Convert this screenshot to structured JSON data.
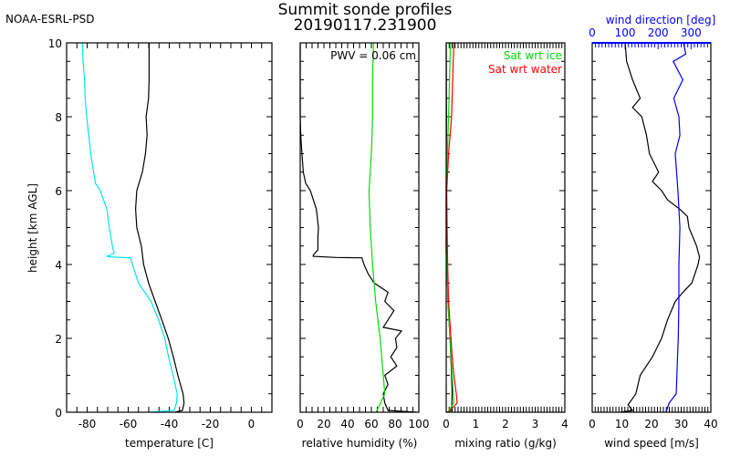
{
  "header": {
    "org": "NOAA-ESRL-PSD",
    "title": "Summit sonde profiles",
    "subtitle": "20190117.231900"
  },
  "chart_data": [
    {
      "type": "line",
      "id": "temperature",
      "xlabel": "temperature [C]",
      "ylabel": "height [km AGL]",
      "xlim": [
        -90,
        10
      ],
      "ylim": [
        0,
        10
      ],
      "xticks": [
        -80,
        -60,
        -40,
        -20,
        0
      ],
      "yticks": [
        0,
        2,
        4,
        6,
        8,
        10
      ],
      "series": [
        {
          "name": "temperature",
          "color": "#000000",
          "points": [
            [
              -37.2,
              0
            ],
            [
              -33.6,
              0.05
            ],
            [
              -32.8,
              0.25
            ],
            [
              -33.3,
              0.5
            ],
            [
              -35.8,
              1
            ],
            [
              -38.0,
              1.5
            ],
            [
              -40.5,
              2
            ],
            [
              -43.6,
              2.5
            ],
            [
              -46.9,
              3
            ],
            [
              -50.1,
              3.5
            ],
            [
              -52.5,
              4
            ],
            [
              -53.6,
              4.5
            ],
            [
              -55.8,
              5
            ],
            [
              -56.4,
              5.5
            ],
            [
              -55.8,
              6
            ],
            [
              -53.1,
              6.5
            ],
            [
              -51.6,
              7
            ],
            [
              -50.8,
              7.5
            ],
            [
              -51.3,
              8
            ],
            [
              -50.1,
              8.5
            ],
            [
              -49.8,
              9
            ],
            [
              -49.8,
              9.5
            ],
            [
              -49.8,
              10
            ]
          ]
        },
        {
          "name": "dewpoint",
          "color": "#00e5ee",
          "points": [
            [
              -49.1,
              0
            ],
            [
              -37.6,
              0.05
            ],
            [
              -36.5,
              0.25
            ],
            [
              -36.2,
              0.5
            ],
            [
              -38.1,
              1
            ],
            [
              -40.4,
              1.5
            ],
            [
              -42.2,
              2
            ],
            [
              -45.2,
              2.5
            ],
            [
              -48.9,
              3
            ],
            [
              -55.0,
              3.5
            ],
            [
              -58.0,
              4
            ],
            [
              -58.8,
              4.18
            ],
            [
              -67.4,
              4.2
            ],
            [
              -70.6,
              4.22
            ],
            [
              -66.9,
              4.3
            ],
            [
              -67.7,
              4.5
            ],
            [
              -69.2,
              5
            ],
            [
              -70.4,
              5.5
            ],
            [
              -73.6,
              6
            ],
            [
              -76.0,
              6.2
            ],
            [
              -76.8,
              6.5
            ],
            [
              -78.3,
              7
            ],
            [
              -79.2,
              7.5
            ],
            [
              -80.2,
              8
            ],
            [
              -81.0,
              8.5
            ],
            [
              -81.3,
              9
            ],
            [
              -82.0,
              9.5
            ],
            [
              -82.3,
              10
            ]
          ]
        }
      ]
    },
    {
      "type": "line",
      "id": "humidity",
      "xlabel": "relative humidity (%)",
      "xlim": [
        0,
        100
      ],
      "ylim": [
        0,
        10
      ],
      "xticks": [
        0,
        20,
        40,
        60,
        80,
        100
      ],
      "annotation": "PWV = 0.06 cm",
      "series": [
        {
          "name": "relative humidity",
          "color": "#000000",
          "points": [
            [
              98,
              0
            ],
            [
              74,
              0.05
            ],
            [
              71.3,
              0.25
            ],
            [
              70,
              0.5
            ],
            [
              74,
              0.75
            ],
            [
              71.3,
              1
            ],
            [
              81.5,
              1.25
            ],
            [
              76.4,
              1.5
            ],
            [
              81.5,
              1.75
            ],
            [
              80.3,
              2
            ],
            [
              85.4,
              2.2
            ],
            [
              70,
              2.3
            ],
            [
              74,
              2.5
            ],
            [
              79,
              2.75
            ],
            [
              71.3,
              3
            ],
            [
              74,
              3.25
            ],
            [
              62.3,
              3.5
            ],
            [
              57.2,
              3.75
            ],
            [
              53.8,
              4
            ],
            [
              52,
              4.18
            ],
            [
              30.3,
              4.19
            ],
            [
              11,
              4.22
            ],
            [
              11,
              4.25
            ],
            [
              14.9,
              4.4
            ],
            [
              14.9,
              4.75
            ],
            [
              15.4,
              5
            ],
            [
              13.6,
              5.5
            ],
            [
              8.5,
              6
            ],
            [
              4.6,
              6.2
            ],
            [
              2.6,
              6.5
            ],
            [
              1.5,
              7
            ],
            [
              0.5,
              7.5
            ],
            [
              0,
              8
            ],
            [
              0,
              9.5
            ],
            [
              0,
              10
            ]
          ]
        },
        {
          "name": "saturation wrt ice",
          "color": "#00dd00",
          "points": [
            [
              64,
              0
            ],
            [
              71.3,
              0.5
            ],
            [
              70,
              1
            ],
            [
              67.4,
              2
            ],
            [
              63.6,
              3
            ],
            [
              61,
              4
            ],
            [
              59,
              5
            ],
            [
              58,
              6
            ],
            [
              60,
              7
            ],
            [
              61,
              8
            ],
            [
              61,
              9
            ],
            [
              61.8,
              10
            ]
          ]
        }
      ]
    },
    {
      "type": "line",
      "id": "mixing-ratio",
      "xlabel": "mixing ratio (g/kg)",
      "xlim": [
        0,
        4
      ],
      "ylim": [
        0,
        10
      ],
      "xticks": [
        0,
        1,
        2,
        3,
        4
      ],
      "legend": "top-right",
      "series": [
        {
          "name": "mixing ratio",
          "color": "#000000",
          "legend": false,
          "points": [
            [
              0.02,
              0
            ],
            [
              0.18,
              0.05
            ],
            [
              0.2,
              0.5
            ],
            [
              0.18,
              1
            ],
            [
              0.13,
              2
            ],
            [
              0.06,
              3
            ],
            [
              0.03,
              4
            ],
            [
              0.0,
              4.3
            ],
            [
              0.0,
              6
            ],
            [
              0.01,
              8
            ],
            [
              0.0,
              10
            ]
          ]
        },
        {
          "name": "Sat wrt ice",
          "color": "#00dd00",
          "legend": true,
          "points": [
            [
              0.05,
              0
            ],
            [
              0.26,
              0.25
            ],
            [
              0.24,
              0.5
            ],
            [
              0.2,
              1
            ],
            [
              0.13,
              2
            ],
            [
              0.06,
              3
            ],
            [
              0.03,
              4
            ],
            [
              0.01,
              5
            ],
            [
              0.01,
              6
            ],
            [
              0.04,
              7
            ],
            [
              0.08,
              8
            ],
            [
              0.11,
              9
            ],
            [
              0.14,
              10
            ]
          ]
        },
        {
          "name": "Sat wrt water",
          "color": "#ff0000",
          "legend": true,
          "points": [
            [
              0.07,
              0
            ],
            [
              0.37,
              0.25
            ],
            [
              0.34,
              0.5
            ],
            [
              0.26,
              1
            ],
            [
              0.2,
              1.5
            ],
            [
              0.16,
              2
            ],
            [
              0.08,
              3
            ],
            [
              0.05,
              4
            ],
            [
              0.03,
              5
            ],
            [
              0.02,
              6
            ],
            [
              0.08,
              7
            ],
            [
              0.18,
              8
            ],
            [
              0.22,
              9
            ],
            [
              0.26,
              10
            ]
          ]
        }
      ]
    },
    {
      "type": "line",
      "id": "wind",
      "xlabel": "wind speed [m/s]",
      "xlim": [
        0,
        40
      ],
      "ylim": [
        0,
        10
      ],
      "xticks": [
        0,
        10,
        20,
        30,
        40
      ],
      "top_axis": {
        "label": "wind direction [deg]",
        "lim": [
          0,
          360
        ],
        "ticks": [
          0,
          100,
          200,
          300
        ],
        "color": "#0000ff"
      },
      "series": [
        {
          "name": "wind speed",
          "color": "#000000",
          "axis": "bottom",
          "points": [
            [
              9.5,
              0
            ],
            [
              13.6,
              0.05
            ],
            [
              12.1,
              0.2
            ],
            [
              14.7,
              0.5
            ],
            [
              16.2,
              1
            ],
            [
              20.3,
              1.5
            ],
            [
              23.4,
              2
            ],
            [
              25.4,
              2.5
            ],
            [
              28,
              3
            ],
            [
              30.6,
              3.25
            ],
            [
              33.6,
              3.5
            ],
            [
              35.7,
              4
            ],
            [
              36.2,
              4.2
            ],
            [
              35.2,
              4.5
            ],
            [
              32.6,
              5
            ],
            [
              32.1,
              5.3
            ],
            [
              29.5,
              5.5
            ],
            [
              25.4,
              5.75
            ],
            [
              23.4,
              6
            ],
            [
              20.3,
              6.25
            ],
            [
              22.4,
              6.5
            ],
            [
              19.3,
              7
            ],
            [
              18.3,
              7.5
            ],
            [
              16.7,
              8
            ],
            [
              13.6,
              8.25
            ],
            [
              16.2,
              8.5
            ],
            [
              13.6,
              9
            ],
            [
              11.6,
              9.5
            ],
            [
              11.1,
              10
            ]
          ]
        },
        {
          "name": "wind direction",
          "color": "#0000ff",
          "axis": "top",
          "points": [
            [
              224,
              0
            ],
            [
              233.5,
              0.25
            ],
            [
              255,
              0.5
            ],
            [
              257,
              1
            ],
            [
              259,
              1.5
            ],
            [
              261,
              2
            ],
            [
              263,
              3
            ],
            [
              263,
              4
            ],
            [
              266,
              5
            ],
            [
              260,
              6
            ],
            [
              252,
              7
            ],
            [
              266,
              7.5
            ],
            [
              263,
              8
            ],
            [
              247.5,
              8.5
            ],
            [
              275,
              9
            ],
            [
              246,
              9.5
            ],
            [
              284,
              9.7
            ],
            [
              277,
              10
            ]
          ]
        }
      ]
    }
  ]
}
